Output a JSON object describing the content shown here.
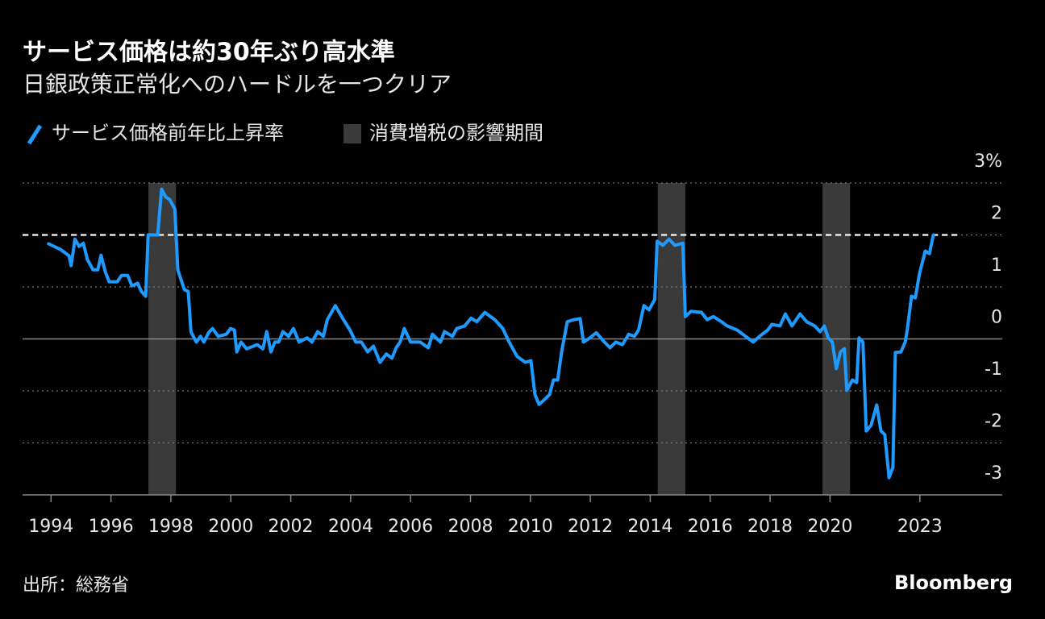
{
  "chart_data": {
    "type": "line",
    "title": "サービス価格は約30年ぶり高水準",
    "subtitle": "日銀政策正常化へのハードルを一つクリア",
    "source": "出所：総務省",
    "brand": "Bloomberg",
    "x": [
      1993.92,
      1994.32,
      1994.6,
      1994.67,
      1994.8,
      1994.94,
      1995.08,
      1995.21,
      1995.4,
      1995.56,
      1995.67,
      1995.81,
      1995.94,
      1996.21,
      1996.35,
      1996.56,
      1996.7,
      1996.89,
      1997.02,
      1997.16,
      1997.24,
      1997.56,
      1997.69,
      1997.83,
      1997.96,
      1998.13,
      1998.23,
      1998.45,
      1998.58,
      1998.67,
      1998.85,
      1998.99,
      1999.1,
      1999.26,
      1999.39,
      1999.58,
      1999.85,
      1999.99,
      2000.12,
      2000.2,
      2000.34,
      2000.53,
      2000.88,
      2001.07,
      2001.2,
      2001.34,
      2001.47,
      2001.6,
      2001.74,
      2001.93,
      2002.09,
      2002.28,
      2002.55,
      2002.71,
      2002.9,
      2003.09,
      2003.22,
      2003.49,
      2003.76,
      2003.98,
      2004.17,
      2004.36,
      2004.57,
      2004.76,
      2004.98,
      2005.19,
      2005.38,
      2005.52,
      2005.65,
      2005.79,
      2006.0,
      2006.32,
      2006.59,
      2006.73,
      2007.0,
      2007.13,
      2007.4,
      2007.54,
      2007.81,
      2008.02,
      2008.21,
      2008.48,
      2008.81,
      2009.08,
      2009.29,
      2009.56,
      2009.83,
      2010.02,
      2010.15,
      2010.29,
      2010.5,
      2010.64,
      2010.77,
      2010.91,
      2011.04,
      2011.23,
      2011.45,
      2011.66,
      2011.77,
      2011.99,
      2012.2,
      2012.47,
      2012.66,
      2012.85,
      2013.07,
      2013.28,
      2013.47,
      2013.61,
      2013.79,
      2013.96,
      2014.15,
      2014.23,
      2014.42,
      2014.63,
      2014.82,
      2015.09,
      2015.17,
      2015.36,
      2015.71,
      2015.9,
      2016.11,
      2016.38,
      2016.57,
      2016.9,
      2017.25,
      2017.44,
      2017.65,
      2017.92,
      2018.06,
      2018.33,
      2018.51,
      2018.73,
      2019.0,
      2019.22,
      2019.49,
      2019.67,
      2019.81,
      2019.94,
      2020.08,
      2020.21,
      2020.35,
      2020.48,
      2020.56,
      2020.75,
      2020.89,
      2020.97,
      2021.1,
      2021.21,
      2021.37,
      2021.56,
      2021.7,
      2021.83,
      2021.97,
      2022.1,
      2022.18,
      2022.37,
      2022.51,
      2022.59,
      2022.72,
      2022.85,
      2022.99,
      2023.18,
      2023.32,
      2023.45
    ],
    "series": [
      {
        "name": "サービス価格前年比上昇率",
        "color": "#1f9bff",
        "values": [
          1.83,
          1.72,
          1.6,
          1.41,
          1.92,
          1.78,
          1.84,
          1.53,
          1.33,
          1.33,
          1.61,
          1.29,
          1.1,
          1.1,
          1.22,
          1.22,
          1.02,
          1.07,
          0.91,
          0.82,
          2.0,
          2.0,
          2.88,
          2.73,
          2.68,
          2.5,
          1.33,
          0.95,
          0.91,
          0.14,
          -0.06,
          0.05,
          -0.06,
          0.12,
          0.2,
          0.05,
          0.09,
          0.2,
          0.17,
          -0.25,
          -0.06,
          -0.19,
          -0.11,
          -0.19,
          0.14,
          -0.25,
          -0.06,
          -0.06,
          0.14,
          0.05,
          0.2,
          -0.06,
          0.02,
          -0.06,
          0.14,
          0.05,
          0.37,
          0.64,
          0.37,
          0.17,
          -0.06,
          -0.06,
          -0.25,
          -0.14,
          -0.45,
          -0.29,
          -0.37,
          -0.17,
          -0.06,
          0.2,
          -0.06,
          -0.06,
          -0.17,
          0.09,
          -0.06,
          0.14,
          0.05,
          0.2,
          0.25,
          0.4,
          0.33,
          0.51,
          0.37,
          0.2,
          -0.06,
          -0.34,
          -0.45,
          -0.42,
          -1.07,
          -1.26,
          -1.15,
          -1.07,
          -0.79,
          -0.79,
          -0.26,
          0.33,
          0.37,
          0.39,
          -0.06,
          0.02,
          0.12,
          -0.06,
          -0.17,
          -0.06,
          -0.11,
          0.09,
          0.05,
          0.17,
          0.64,
          0.56,
          0.76,
          1.88,
          1.8,
          1.92,
          1.8,
          1.84,
          0.43,
          0.53,
          0.51,
          0.37,
          0.43,
          0.33,
          0.25,
          0.17,
          0.02,
          -0.06,
          0.05,
          0.17,
          0.28,
          0.25,
          0.48,
          0.25,
          0.48,
          0.33,
          0.25,
          0.14,
          0.25,
          0.02,
          -0.06,
          -0.57,
          -0.25,
          -0.19,
          -0.99,
          -0.79,
          -0.84,
          0.02,
          -0.06,
          -1.77,
          -1.66,
          -1.27,
          -1.77,
          -1.84,
          -2.67,
          -2.47,
          -0.26,
          -0.25,
          -0.06,
          0.22,
          0.82,
          0.79,
          1.26,
          1.69,
          1.64,
          2.0
        ]
      }
    ],
    "shaded_periods": {
      "name": "消費増税の影響期間",
      "color": "#3a3a3a",
      "spans": [
        [
          1997.25,
          1998.17
        ],
        [
          2014.25,
          2015.17
        ],
        [
          2019.75,
          2020.67
        ]
      ]
    },
    "reference_line": 2,
    "xlim": [
      1993.05,
      2025.75
    ],
    "xticks": [
      1994,
      1996,
      1998,
      2000,
      2002,
      2004,
      2006,
      2008,
      2010,
      2012,
      2014,
      2016,
      2018,
      2020,
      2023
    ],
    "ylim": [
      -3,
      3
    ],
    "yticks": [
      {
        "value": 3,
        "label": "3%"
      },
      2,
      1,
      0,
      -1,
      -2,
      -3
    ],
    "grid": true
  }
}
